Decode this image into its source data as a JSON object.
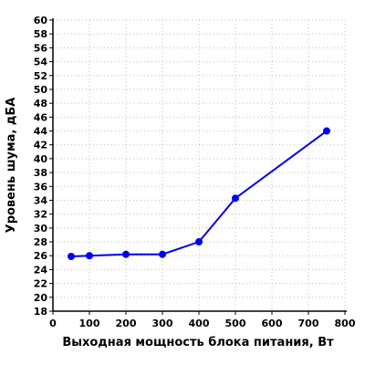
{
  "chart_data": {
    "type": "line",
    "title": "",
    "xlabel": "Выходная мощность блока питания, Вт",
    "ylabel": "Уровень шума, дБА",
    "xlim": [
      0,
      800
    ],
    "ylim": [
      18,
      60
    ],
    "x_ticks": [
      0,
      100,
      200,
      300,
      400,
      500,
      600,
      700,
      800
    ],
    "y_ticks": [
      18,
      20,
      22,
      24,
      26,
      28,
      30,
      32,
      34,
      36,
      38,
      40,
      42,
      44,
      46,
      48,
      50,
      52,
      54,
      56,
      58,
      60
    ],
    "grid": true,
    "series": [
      {
        "color": "#0000ee",
        "x": [
          50,
          100,
          200,
          300,
          400,
          500,
          750
        ],
        "y": [
          25.9,
          26.0,
          26.2,
          26.2,
          28.0,
          34.3,
          44.0
        ]
      }
    ]
  }
}
